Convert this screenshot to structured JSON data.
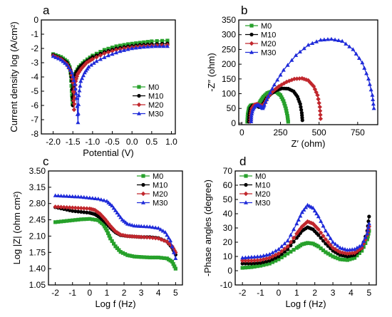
{
  "colors": {
    "M0": "#27a12b",
    "M10": "#000000",
    "M20": "#c1272d",
    "M30": "#1f2bd9"
  },
  "chart_data": [
    {
      "panel": "a",
      "type": "line",
      "xlabel": "Potential (V)",
      "ylabel": "Current density log (A/cm²)",
      "xlim": [
        -2.3,
        1.1
      ],
      "ylim": [
        -8,
        0
      ],
      "xticks": [
        -2.0,
        -1.5,
        -1.0,
        -0.5,
        0.0,
        0.5,
        1.0
      ],
      "xtick_labels": [
        "-2.0",
        "-1.5",
        "-1.0",
        "-0.5",
        "0.0",
        "0.5",
        "1.0"
      ],
      "yticks": [
        0,
        -1,
        -2,
        -3,
        -4,
        -5,
        -6,
        -7,
        -8
      ],
      "ytick_labels": [
        "0",
        "-1",
        "-2",
        "-3",
        "-4",
        "-5",
        "-6",
        "-7",
        "-8"
      ],
      "legend": "bottom-right",
      "series": [
        {
          "name": "M0",
          "x": [
            -2.0,
            -1.8,
            -1.65,
            -1.58,
            -1.55,
            -1.53,
            -1.51,
            -1.49,
            -1.45,
            -1.35,
            -1.2,
            -1.0,
            -0.7,
            -0.4,
            -0.1,
            0.2,
            0.5,
            0.9
          ],
          "y": [
            -2.4,
            -2.6,
            -2.9,
            -3.3,
            -3.9,
            -5.0,
            -5.9,
            -4.6,
            -3.8,
            -3.3,
            -2.9,
            -2.5,
            -2.1,
            -1.85,
            -1.7,
            -1.6,
            -1.5,
            -1.45
          ]
        },
        {
          "name": "M10",
          "x": [
            -2.0,
            -1.8,
            -1.65,
            -1.56,
            -1.53,
            -1.5,
            -1.48,
            -1.46,
            -1.42,
            -1.32,
            -1.2,
            -1.0,
            -0.7,
            -0.4,
            -0.1,
            0.2,
            0.5,
            0.9
          ],
          "y": [
            -2.45,
            -2.7,
            -3.0,
            -3.5,
            -4.3,
            -6.0,
            -5.0,
            -4.2,
            -3.7,
            -3.3,
            -3.0,
            -2.6,
            -2.25,
            -2.0,
            -1.85,
            -1.75,
            -1.7,
            -1.65
          ]
        },
        {
          "name": "M20",
          "x": [
            -2.0,
            -1.8,
            -1.65,
            -1.55,
            -1.5,
            -1.47,
            -1.45,
            -1.43,
            -1.38,
            -1.28,
            -1.15,
            -1.0,
            -0.7,
            -0.4,
            -0.1,
            0.2,
            0.5,
            0.9
          ],
          "y": [
            -2.5,
            -2.75,
            -3.1,
            -3.6,
            -4.4,
            -6.3,
            -5.1,
            -4.3,
            -3.8,
            -3.4,
            -3.0,
            -2.75,
            -2.35,
            -2.1,
            -1.95,
            -1.85,
            -1.8,
            -1.75
          ]
        },
        {
          "name": "M30",
          "x": [
            -2.0,
            -1.8,
            -1.65,
            -1.52,
            -1.45,
            -1.4,
            -1.37,
            -1.35,
            -1.3,
            -1.2,
            -1.1,
            -0.9,
            -0.6,
            -0.3,
            0.0,
            0.3,
            0.6,
            0.9
          ],
          "y": [
            -2.55,
            -2.8,
            -3.15,
            -3.7,
            -4.5,
            -5.5,
            -7.2,
            -5.3,
            -4.3,
            -3.7,
            -3.3,
            -2.9,
            -2.5,
            -2.2,
            -2.0,
            -1.9,
            -1.85,
            -1.85
          ]
        }
      ]
    },
    {
      "panel": "b",
      "type": "line",
      "xlabel": "Z′ (ohm)",
      "ylabel": "-Z″ (ohm)",
      "xlim": [
        -20,
        880
      ],
      "ylim": [
        -5,
        350
      ],
      "xticks": [
        0,
        250,
        500,
        750
      ],
      "xtick_labels": [
        "0",
        "250",
        "500",
        "750"
      ],
      "yticks": [
        0,
        50,
        100,
        150,
        200,
        250,
        300,
        350
      ],
      "ytick_labels": [
        "0",
        "50",
        "100",
        "150",
        "200",
        "250",
        "300",
        "350"
      ],
      "legend": "top-left",
      "series": [
        {
          "name": "M0",
          "x": [
            35,
            38,
            45,
            58,
            75,
            90,
            105,
            120,
            140,
            165,
            195,
            225,
            250,
            270,
            285,
            295,
            300
          ],
          "y": [
            5,
            30,
            50,
            60,
            62,
            58,
            60,
            75,
            90,
            102,
            108,
            105,
            95,
            75,
            50,
            25,
            5
          ]
        },
        {
          "name": "M10",
          "x": [
            45,
            48,
            55,
            70,
            90,
            110,
            125,
            140,
            160,
            190,
            225,
            260,
            300,
            335,
            360,
            378,
            388,
            392
          ],
          "y": [
            5,
            30,
            50,
            60,
            62,
            55,
            55,
            68,
            85,
            100,
            112,
            118,
            117,
            108,
            90,
            65,
            35,
            10
          ]
        },
        {
          "name": "M20",
          "x": [
            55,
            58,
            65,
            80,
            100,
            120,
            135,
            150,
            170,
            200,
            240,
            290,
            340,
            390,
            430,
            465,
            490,
            505,
            510
          ],
          "y": [
            5,
            30,
            50,
            62,
            65,
            60,
            58,
            70,
            90,
            108,
            125,
            140,
            150,
            152,
            145,
            125,
            95,
            55,
            15
          ]
        },
        {
          "name": "M30",
          "x": [
            60,
            62,
            70,
            85,
            105,
            125,
            135,
            145,
            170,
            210,
            270,
            350,
            430,
            510,
            580,
            650,
            720,
            780,
            820,
            845,
            855
          ],
          "y": [
            5,
            25,
            45,
            58,
            62,
            56,
            50,
            62,
            90,
            130,
            180,
            230,
            265,
            282,
            285,
            278,
            250,
            205,
            150,
            95,
            50
          ]
        }
      ]
    },
    {
      "panel": "c",
      "type": "line",
      "xlabel": "Log f (Hz)",
      "ylabel": "Log |Z| (ohm cm²)",
      "xlim": [
        -2.4,
        5.4
      ],
      "ylim": [
        1.05,
        3.5
      ],
      "xticks": [
        -2,
        -1,
        0,
        1,
        2,
        3,
        4,
        5
      ],
      "xtick_labels": [
        "-2",
        "-1",
        "0",
        "1",
        "2",
        "3",
        "4",
        "5"
      ],
      "yticks": [
        1.05,
        1.4,
        1.75,
        2.1,
        2.45,
        2.8,
        3.15,
        3.5
      ],
      "ytick_labels": [
        "1.05",
        "1.40",
        "1.75",
        "2.10",
        "2.45",
        "2.80",
        "3.15",
        "3.50"
      ],
      "legend": "top-right",
      "series": [
        {
          "name": "M0",
          "x": [
            -2,
            -1.5,
            -1,
            -0.5,
            0,
            0.5,
            0.8,
            1.0,
            1.2,
            1.5,
            1.8,
            2.2,
            2.6,
            3.0,
            3.5,
            4.0,
            4.5,
            4.8,
            5.0
          ],
          "y": [
            2.4,
            2.42,
            2.44,
            2.46,
            2.47,
            2.44,
            2.35,
            2.22,
            2.05,
            1.88,
            1.76,
            1.69,
            1.66,
            1.65,
            1.64,
            1.64,
            1.62,
            1.55,
            1.4
          ]
        },
        {
          "name": "M10",
          "x": [
            -2,
            -1.5,
            -1,
            -0.5,
            0,
            0.3,
            0.6,
            0.9,
            1.2,
            1.5,
            1.8,
            2.2,
            2.6,
            3.0,
            3.5,
            4.0,
            4.5,
            4.8,
            5.0
          ],
          "y": [
            2.72,
            2.68,
            2.64,
            2.62,
            2.6,
            2.57,
            2.5,
            2.4,
            2.28,
            2.18,
            2.12,
            2.1,
            2.09,
            2.08,
            2.08,
            2.06,
            1.98,
            1.85,
            1.7
          ]
        },
        {
          "name": "M20",
          "x": [
            -2,
            -1.5,
            -1,
            -0.5,
            0,
            0.3,
            0.6,
            0.9,
            1.2,
            1.5,
            1.8,
            2.2,
            2.6,
            3.0,
            3.5,
            4.0,
            4.5,
            4.8,
            5.0
          ],
          "y": [
            2.73,
            2.72,
            2.71,
            2.7,
            2.69,
            2.66,
            2.58,
            2.46,
            2.32,
            2.2,
            2.13,
            2.1,
            2.09,
            2.08,
            2.07,
            2.05,
            1.98,
            1.88,
            1.75
          ]
        },
        {
          "name": "M30",
          "x": [
            -2,
            -1.5,
            -1,
            -0.5,
            0,
            0.5,
            1.0,
            1.3,
            1.6,
            1.9,
            2.2,
            2.6,
            3.0,
            3.5,
            4.0,
            4.4,
            4.7,
            5.0
          ],
          "y": [
            2.97,
            2.96,
            2.95,
            2.94,
            2.92,
            2.9,
            2.85,
            2.75,
            2.6,
            2.45,
            2.36,
            2.32,
            2.31,
            2.3,
            2.27,
            2.18,
            2.0,
            1.62
          ]
        }
      ]
    },
    {
      "panel": "d",
      "type": "line",
      "xlabel": "Log f (Hz)",
      "ylabel": "-Phase angles (degree)",
      "xlim": [
        -2.4,
        5.4
      ],
      "ylim": [
        -10,
        70
      ],
      "xticks": [
        -2,
        -1,
        0,
        1,
        2,
        3,
        4,
        5
      ],
      "xtick_labels": [
        "-2",
        "-1",
        "0",
        "1",
        "2",
        "3",
        "4",
        "5"
      ],
      "yticks": [
        -10,
        0,
        10,
        20,
        30,
        40,
        50,
        60,
        70
      ],
      "ytick_labels": [
        "-10",
        "0",
        "10",
        "20",
        "30",
        "40",
        "50",
        "60",
        "70"
      ],
      "legend": "top-left",
      "series": [
        {
          "name": "M0",
          "x": [
            -2,
            -1.5,
            -1,
            -0.5,
            0,
            0.5,
            1.0,
            1.3,
            1.6,
            1.9,
            2.2,
            2.6,
            3.0,
            3.4,
            3.8,
            4.2,
            4.6,
            4.9,
            5.0
          ],
          "y": [
            2,
            2.5,
            3.5,
            5,
            8,
            12,
            16,
            18.5,
            19.5,
            19,
            17,
            13,
            10,
            8,
            7.5,
            9,
            14,
            22,
            28
          ]
        },
        {
          "name": "M10",
          "x": [
            -2,
            -1.5,
            -1,
            -0.5,
            0,
            0.5,
            1.0,
            1.3,
            1.6,
            1.9,
            2.2,
            2.6,
            3.0,
            3.4,
            3.8,
            4.2,
            4.6,
            4.9,
            5.0
          ],
          "y": [
            5,
            5,
            5.5,
            7,
            10,
            15,
            23,
            28,
            30.5,
            29,
            25,
            19,
            14,
            11,
            10,
            11,
            16,
            28,
            38
          ]
        },
        {
          "name": "M20",
          "x": [
            -2,
            -1.5,
            -1,
            -0.5,
            0,
            0.5,
            1.0,
            1.3,
            1.6,
            1.9,
            2.2,
            2.6,
            3.0,
            3.4,
            3.8,
            4.2,
            4.6,
            4.9,
            5.0
          ],
          "y": [
            7,
            7,
            7.5,
            9,
            12,
            17,
            26,
            31,
            34.5,
            33,
            29,
            22,
            16,
            13,
            12,
            12.5,
            16,
            25,
            31
          ]
        },
        {
          "name": "M30",
          "x": [
            -2,
            -1.5,
            -1,
            -0.5,
            0,
            0.5,
            1.0,
            1.3,
            1.6,
            1.9,
            2.2,
            2.6,
            3.0,
            3.4,
            3.8,
            4.2,
            4.6,
            4.9,
            5.0
          ],
          "y": [
            9,
            9.5,
            10,
            11.5,
            15,
            21,
            33,
            41,
            46,
            44,
            38,
            28,
            20,
            16,
            14.5,
            15,
            18,
            26,
            33
          ]
        }
      ]
    }
  ]
}
